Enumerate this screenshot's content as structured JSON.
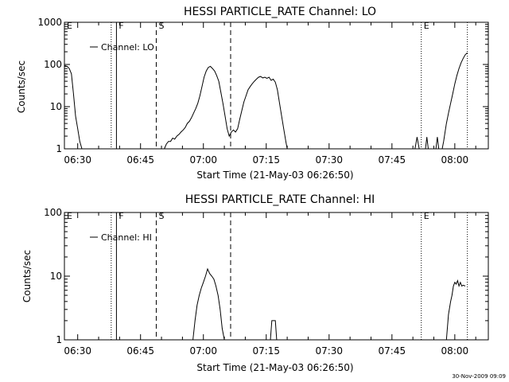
{
  "footer": {
    "timestamp": "30-Nov-2009 09:09"
  },
  "chart_data": [
    {
      "type": "line",
      "title": "HESSI PARTICLE_RATE Channel: LO",
      "xlabel": "Start Time (21-May-03 06:26:50)",
      "ylabel": "Counts/sec",
      "y_scale": "log",
      "ylim": [
        1,
        1000
      ],
      "y_ticks": [
        1,
        10,
        100,
        1000
      ],
      "y_tick_labels": [
        "1",
        "10",
        "100",
        "1000"
      ],
      "xlim": [
        "06:26:50",
        "08:08:00"
      ],
      "x_ticks": [
        "06:30",
        "06:45",
        "07:00",
        "07:15",
        "07:30",
        "07:45",
        "08:00"
      ],
      "legend": {
        "placement": "top-left",
        "entries": [
          "Channel: LO"
        ]
      },
      "markers": [
        {
          "time": "06:26:50",
          "label": "E",
          "style": "dotted"
        },
        {
          "time": "06:38:00",
          "label": "",
          "style": "dotted"
        },
        {
          "time": "06:39:15",
          "label": "F",
          "style": "solid"
        },
        {
          "time": "06:48:45",
          "label": "S",
          "style": "dashed"
        },
        {
          "time": "07:06:30",
          "label": "",
          "style": "dashed"
        },
        {
          "time": "07:52:00",
          "label": "E",
          "style": "dotted"
        },
        {
          "time": "08:03:00",
          "label": "",
          "style": "dotted"
        }
      ],
      "series": [
        {
          "name": "Channel: LO",
          "segments": [
            {
              "t": [
                "06:26:50",
                "06:27:30",
                "06:28:00",
                "06:28:30",
                "06:29:00",
                "06:29:30",
                "06:30:00",
                "06:30:30",
                "06:31:00",
                "06:31:30"
              ],
              "y": [
                95,
                90,
                80,
                60,
                20,
                6,
                3,
                1.5,
                1,
                1
              ]
            },
            {
              "t": [
                "06:50:40",
                "06:51:10",
                "06:51:40",
                "06:52:10",
                "06:52:40",
                "06:53:10",
                "06:53:40",
                "06:54:10",
                "06:54:40",
                "06:55:10",
                "06:55:40",
                "06:56:10",
                "06:56:40",
                "06:57:10",
                "06:57:40",
                "06:58:10",
                "06:58:40",
                "06:59:10",
                "06:59:40",
                "07:00:10",
                "07:00:40",
                "07:01:10",
                "07:01:40",
                "07:02:10",
                "07:02:40",
                "07:03:10",
                "07:03:40",
                "07:04:10",
                "07:04:40",
                "07:05:10",
                "07:05:40",
                "07:06:10",
                "07:06:40",
                "07:07:10",
                "07:07:40",
                "07:08:10",
                "07:08:40",
                "07:09:10",
                "07:09:40",
                "07:10:10",
                "07:10:40",
                "07:11:10",
                "07:11:40",
                "07:12:10",
                "07:12:40",
                "07:13:10",
                "07:13:40",
                "07:14:10",
                "07:14:40",
                "07:15:10",
                "07:15:40",
                "07:16:10",
                "07:16:40",
                "07:17:10",
                "07:17:40",
                "07:18:10",
                "07:18:40",
                "07:19:10",
                "07:19:40",
                "07:20:00",
                "07:20:30"
              ],
              "y": [
                1,
                1.3,
                1.5,
                1.5,
                1.8,
                1.7,
                2,
                2.2,
                2.5,
                2.8,
                3.2,
                4,
                4.5,
                5.5,
                7,
                9,
                12,
                18,
                30,
                50,
                70,
                85,
                90,
                80,
                70,
                55,
                40,
                22,
                12,
                6,
                3,
                2,
                2.5,
                2.8,
                2.5,
                3,
                5,
                8,
                13,
                18,
                25,
                30,
                35,
                40,
                45,
                50,
                52,
                48,
                50,
                47,
                50,
                42,
                45,
                38,
                25,
                12,
                6,
                3,
                1.5,
                1,
                1
              ]
            },
            {
              "t": [
                "07:50:30",
                "07:51:00",
                "07:51:30"
              ],
              "y": [
                1,
                1.9,
                1
              ]
            },
            {
              "t": [
                "07:53:00",
                "07:53:20",
                "07:53:40"
              ],
              "y": [
                1,
                1.9,
                1
              ]
            },
            {
              "t": [
                "07:55:30",
                "07:55:50",
                "07:56:10"
              ],
              "y": [
                1,
                1.9,
                1
              ]
            },
            {
              "t": [
                "07:57:00",
                "07:57:20",
                "07:57:40",
                "07:58:00",
                "07:58:30",
                "07:59:00",
                "07:59:30",
                "08:00:00",
                "08:00:30",
                "08:01:00",
                "08:01:30",
                "08:02:00",
                "08:02:30",
                "08:03:00"
              ],
              "y": [
                1,
                1.5,
                2.5,
                4,
                7,
                12,
                20,
                35,
                55,
                80,
                110,
                140,
                170,
                190
              ]
            }
          ]
        }
      ]
    },
    {
      "type": "line",
      "title": "HESSI PARTICLE_RATE Channel: HI",
      "xlabel": "Start Time (21-May-03 06:26:50)",
      "ylabel": "Counts/sec",
      "y_scale": "log",
      "ylim": [
        1,
        100
      ],
      "y_ticks": [
        1,
        10,
        100
      ],
      "y_tick_labels": [
        "1",
        "10",
        "100"
      ],
      "xlim": [
        "06:26:50",
        "08:08:00"
      ],
      "x_ticks": [
        "06:30",
        "06:45",
        "07:00",
        "07:15",
        "07:30",
        "07:45",
        "08:00"
      ],
      "legend": {
        "placement": "top-left",
        "entries": [
          "Channel: HI"
        ]
      },
      "markers": [
        {
          "time": "06:26:50",
          "label": "E",
          "style": "dotted"
        },
        {
          "time": "06:38:00",
          "label": "",
          "style": "dotted"
        },
        {
          "time": "06:39:15",
          "label": "F",
          "style": "solid"
        },
        {
          "time": "06:48:45",
          "label": "S",
          "style": "dashed"
        },
        {
          "time": "07:06:30",
          "label": "",
          "style": "dashed"
        },
        {
          "time": "07:52:00",
          "label": "E",
          "style": "dotted"
        },
        {
          "time": "08:03:00",
          "label": "",
          "style": "dotted"
        }
      ],
      "series": [
        {
          "name": "Channel: HI",
          "segments": [
            {
              "t": [
                "06:57:30",
                "06:58:00",
                "06:58:30",
                "06:59:00",
                "06:59:30",
                "07:00:00",
                "07:00:30",
                "07:01:00",
                "07:01:30",
                "07:02:00",
                "07:02:30",
                "07:03:00",
                "07:03:30",
                "07:04:00",
                "07:04:30",
                "07:05:00"
              ],
              "y": [
                1,
                2,
                3.5,
                5,
                6.5,
                8,
                10,
                13,
                11,
                10,
                9,
                7,
                5,
                3,
                1.5,
                1
              ]
            },
            {
              "t": [
                "07:16:00",
                "07:16:20",
                "07:17:10",
                "07:17:30"
              ],
              "y": [
                1,
                2,
                2,
                1
              ]
            },
            {
              "t": [
                "07:58:00",
                "07:58:30",
                "07:59:00",
                "07:59:20",
                "07:59:40",
                "08:00:00",
                "08:00:20",
                "08:00:40",
                "08:01:00",
                "08:01:20",
                "08:01:40",
                "08:02:00",
                "08:02:30"
              ],
              "y": [
                1,
                2.5,
                4,
                5,
                7,
                8,
                7.5,
                8.5,
                7,
                8,
                7,
                7.2,
                7
              ]
            }
          ]
        }
      ]
    }
  ]
}
